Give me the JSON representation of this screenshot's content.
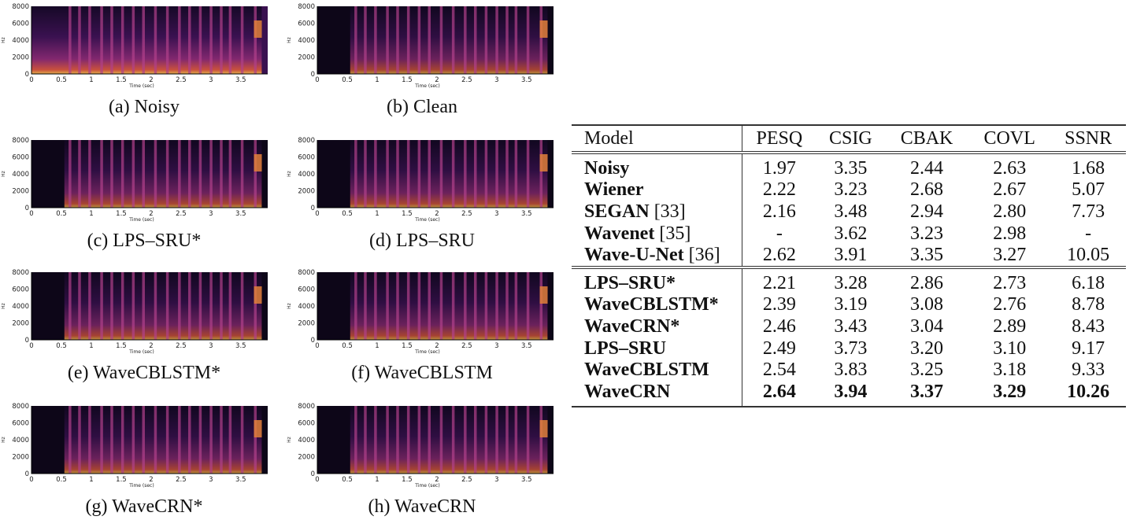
{
  "spectrograms": {
    "y_ticks": [
      "0",
      "2000",
      "4000",
      "6000",
      "8000"
    ],
    "x_ticks": [
      "0",
      "0.5",
      "1",
      "1.5",
      "2",
      "2.5",
      "3",
      "3.5"
    ],
    "ylabel": "Hz",
    "xlabel": "Time (sec)",
    "panels": [
      {
        "caption": "(a)  Noisy"
      },
      {
        "caption": "(b)  Clean"
      },
      {
        "caption": "(c)  LPS–SRU*"
      },
      {
        "caption": "(d)  LPS–SRU"
      },
      {
        "caption": "(e)  WaveCBLSTM*"
      },
      {
        "caption": "(f)  WaveCBLSTM"
      },
      {
        "caption": "(g)  WaveCRN*"
      },
      {
        "caption": "(h)  WaveCRN"
      }
    ]
  },
  "table": {
    "headers": [
      "Model",
      "PESQ",
      "CSIG",
      "CBAK",
      "COVL",
      "SSNR"
    ],
    "rows": [
      {
        "name": "Noisy",
        "ref": "",
        "values": [
          "1.97",
          "3.35",
          "2.44",
          "2.63",
          "1.68"
        ]
      },
      {
        "name": "Wiener",
        "ref": "",
        "values": [
          "2.22",
          "3.23",
          "2.68",
          "2.67",
          "5.07"
        ]
      },
      {
        "name": "SEGAN",
        "ref": "[33]",
        "values": [
          "2.16",
          "3.48",
          "2.94",
          "2.80",
          "7.73"
        ]
      },
      {
        "name": "Wavenet",
        "ref": "[35]",
        "values": [
          "-",
          "3.62",
          "3.23",
          "2.98",
          "-"
        ]
      },
      {
        "name": "Wave-U-Net",
        "ref": "[36]",
        "values": [
          "2.62",
          "3.91",
          "3.35",
          "3.27",
          "10.05"
        ]
      },
      {
        "name": "LPS–SRU*",
        "ref": "",
        "values": [
          "2.21",
          "3.28",
          "2.86",
          "2.73",
          "6.18"
        ]
      },
      {
        "name": "WaveCBLSTM*",
        "ref": "",
        "values": [
          "2.39",
          "3.19",
          "3.08",
          "2.76",
          "8.78"
        ]
      },
      {
        "name": "WaveCRN*",
        "ref": "",
        "values": [
          "2.46",
          "3.43",
          "3.04",
          "2.89",
          "8.43"
        ]
      },
      {
        "name": "LPS–SRU",
        "ref": "",
        "values": [
          "2.49",
          "3.73",
          "3.20",
          "3.10",
          "9.17"
        ]
      },
      {
        "name": "WaveCBLSTM",
        "ref": "",
        "values": [
          "2.54",
          "3.83",
          "3.25",
          "3.18",
          "9.33"
        ]
      },
      {
        "name": "WaveCRN",
        "ref": "",
        "values": [
          "2.64",
          "3.94",
          "3.37",
          "3.29",
          "10.26"
        ]
      }
    ]
  }
}
